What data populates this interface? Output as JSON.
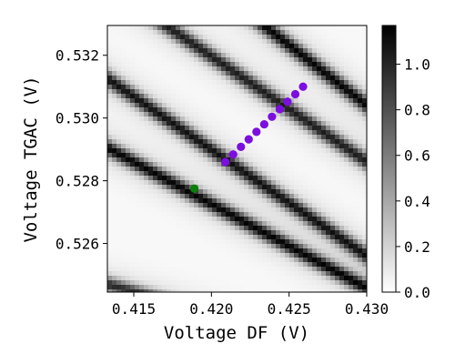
{
  "chart_data": {
    "type": "heatmap",
    "title": "",
    "xlabel": "Voltage DF (V)",
    "ylabel": "Voltage TGAC (V)",
    "xlim": [
      0.4133,
      0.43
    ],
    "ylim": [
      0.52445,
      0.53295
    ],
    "x_ticks": [
      {
        "value": 0.415,
        "label": "0.415"
      },
      {
        "value": 0.42,
        "label": "0.420"
      },
      {
        "value": 0.425,
        "label": "0.425"
      },
      {
        "value": 0.43,
        "label": "0.430"
      }
    ],
    "y_ticks": [
      {
        "value": 0.526,
        "label": "0.526"
      },
      {
        "value": 0.528,
        "label": "0.528"
      },
      {
        "value": 0.53,
        "label": "0.530"
      },
      {
        "value": 0.532,
        "label": "0.532"
      }
    ],
    "colormap": "greys",
    "colorbar": {
      "range": [
        0,
        1.17
      ],
      "ticks": [
        {
          "value": 0.0,
          "label": "0.0"
        },
        {
          "value": 0.2,
          "label": "0.2"
        },
        {
          "value": 0.4,
          "label": "0.4"
        },
        {
          "value": 0.6,
          "label": "0.6"
        },
        {
          "value": 0.8,
          "label": "0.8"
        },
        {
          "value": 1.0,
          "label": "1.0"
        }
      ]
    },
    "transition_lines": [
      {
        "points": [
          [
            0.4133,
            0.52905
          ],
          [
            0.4297,
            0.52465
          ]
        ],
        "peak": 1.0
      },
      {
        "points": [
          [
            0.4133,
            0.53125
          ],
          [
            0.43,
            0.5256
          ]
        ],
        "peak": 0.95
      },
      {
        "points": [
          [
            0.4172,
            0.5329
          ],
          [
            0.43,
            0.5286
          ]
        ],
        "peak": 0.9
      },
      {
        "points": [
          [
            0.4235,
            0.5329
          ],
          [
            0.43,
            0.5304
          ]
        ],
        "peak": 1.0
      },
      {
        "points": [
          [
            0.4133,
            0.5247
          ],
          [
            0.415,
            0.52445
          ]
        ],
        "peak": 0.85
      }
    ],
    "series": [
      {
        "marker": "circle",
        "color": "#7c0ee0",
        "x": [
          0.4209,
          0.4214,
          0.4219,
          0.4224,
          0.4229,
          0.4234,
          0.4239,
          0.4244,
          0.4249,
          0.4254,
          0.4259
        ],
        "y": [
          0.5286,
          0.52884,
          0.52908,
          0.52932,
          0.52956,
          0.5298,
          0.53004,
          0.53028,
          0.53052,
          0.53076,
          0.531
        ]
      },
      {
        "marker": "circle",
        "color": "#0b7d0b",
        "x": [
          0.4189
        ],
        "y": [
          0.52775
        ]
      }
    ]
  }
}
